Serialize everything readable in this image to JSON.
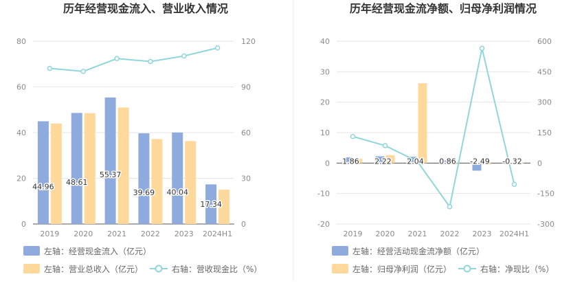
{
  "colors": {
    "bar_primary": "#8faadc",
    "bar_secondary": "#ffd99b",
    "line": "#8fd6dc",
    "grid": "#e6e6e6",
    "axis": "#cccccc",
    "divider": "#eeeeee"
  },
  "chart_data": [
    {
      "type": "bar",
      "title": "历年经营现金流入、营业收入情况",
      "categories": [
        "2019",
        "2020",
        "2021",
        "2022",
        "2023",
        "2024H1"
      ],
      "left_axis": {
        "min": 0,
        "max": 80,
        "ticks": [
          "0",
          "20",
          "40",
          "60",
          "80"
        ]
      },
      "right_axis": {
        "min": 0,
        "max": 120,
        "ticks": [
          "0",
          "30",
          "60",
          "90",
          "120"
        ]
      },
      "series": [
        {
          "name": "左轴：经营现金流入（亿元）",
          "kind": "bar",
          "axis": "left",
          "values": [
            44.96,
            48.61,
            55.37,
            39.69,
            40.04,
            17.34
          ],
          "labels": [
            "44.96",
            "48.61",
            "55.37",
            "39.69",
            "40.04",
            "17.34"
          ]
        },
        {
          "name": "左轴：营业总收入（亿元）",
          "kind": "bar",
          "axis": "left",
          "values": [
            44.0,
            48.5,
            51.0,
            37.2,
            36.3,
            15.0
          ]
        },
        {
          "name": "右轴：营收现金比（%）",
          "kind": "line",
          "axis": "right",
          "values": [
            102.2,
            100.2,
            108.6,
            106.7,
            110.3,
            115.6
          ]
        }
      ]
    },
    {
      "type": "bar",
      "title": "历年经营现金流净额、归母净利润情况",
      "categories": [
        "2019",
        "2020",
        "2021",
        "2022",
        "2023",
        "2024H1"
      ],
      "left_axis": {
        "min": -20,
        "max": 40,
        "ticks": [
          "-20",
          "-10",
          "0",
          "10",
          "20",
          "30",
          "40"
        ]
      },
      "right_axis": {
        "min": -300,
        "max": 600,
        "ticks": [
          "-300",
          "-150",
          "0",
          "150",
          "300",
          "450",
          "600"
        ]
      },
      "series": [
        {
          "name": "左轴：经营活动现金流净额（亿元）",
          "kind": "bar",
          "axis": "left",
          "values": [
            1.86,
            2.22,
            2.04,
            0.86,
            -2.49,
            -0.32
          ],
          "labels": [
            "1.86",
            "2.22",
            "2.04",
            "0.86",
            "-2.49",
            "-0.32"
          ]
        },
        {
          "name": "左轴：归母净利润（亿元）",
          "kind": "bar",
          "axis": "left",
          "values": [
            1.4,
            2.6,
            26.2,
            -0.4,
            -0.45,
            0.2
          ]
        },
        {
          "name": "右轴：净现比（%）",
          "kind": "line",
          "axis": "right",
          "values": [
            131,
            86,
            8,
            -215,
            565,
            -105
          ]
        }
      ]
    }
  ]
}
